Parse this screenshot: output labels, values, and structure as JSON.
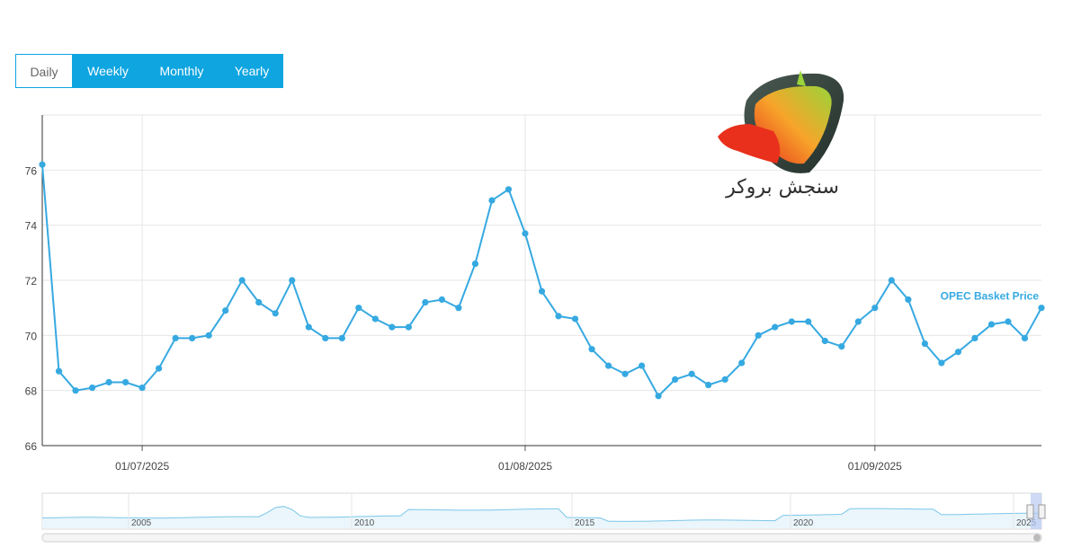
{
  "tabs": [
    {
      "label": "Daily",
      "active": true
    },
    {
      "label": "Weekly",
      "active": false
    },
    {
      "label": "Monthly",
      "active": false
    },
    {
      "label": "Yearly",
      "active": false
    }
  ],
  "logo": {
    "text": "سنجش بروکر"
  },
  "colors": {
    "series": "#36a9e1",
    "accent": "#0ea5e0",
    "grid": "#e6e6e6"
  },
  "chart_data": {
    "type": "line",
    "title": "",
    "xlabel": "",
    "ylabel": "",
    "ylim": [
      66,
      78
    ],
    "yticks": [
      66,
      68,
      70,
      72,
      74,
      76
    ],
    "xticks": [
      "01/07/2025",
      "01/08/2025",
      "01/09/2025"
    ],
    "grid": true,
    "series": [
      {
        "name": "OPEC Basket Price",
        "values": [
          76.2,
          68.7,
          68.0,
          68.1,
          68.3,
          68.3,
          68.1,
          68.8,
          69.9,
          69.9,
          70.0,
          70.9,
          72.0,
          71.2,
          70.8,
          72.0,
          70.3,
          69.9,
          69.9,
          71.0,
          70.6,
          70.3,
          70.3,
          71.2,
          71.3,
          71.0,
          72.6,
          74.9,
          75.3,
          73.7,
          71.6,
          70.7,
          70.6,
          69.5,
          68.9,
          68.6,
          68.9,
          67.8,
          68.4,
          68.6,
          68.2,
          68.4,
          69.0,
          70.0,
          70.3,
          70.5,
          70.5,
          69.8,
          69.6,
          70.5,
          71.0,
          72.0,
          71.3,
          69.7,
          69.0,
          69.4,
          69.9,
          70.4,
          70.5,
          69.9,
          71.0
        ]
      }
    ],
    "navigator": {
      "labels": [
        "2005",
        "2010",
        "2015",
        "2020",
        "2025"
      ]
    }
  }
}
